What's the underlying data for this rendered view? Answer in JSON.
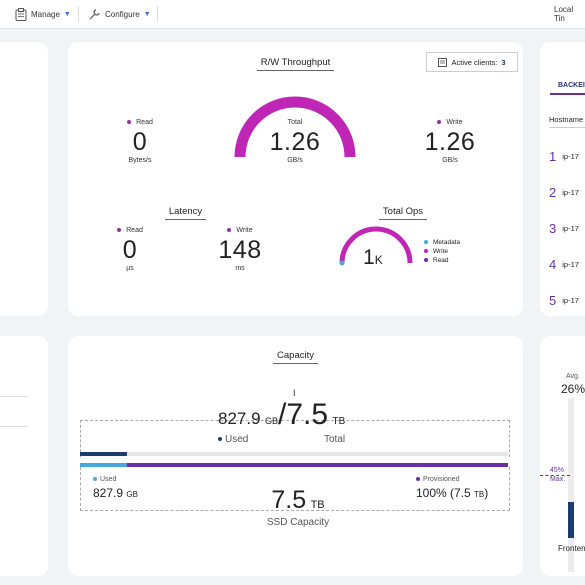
{
  "topbar": {
    "manage_label": "Manage",
    "configure_label": "Configure",
    "local_time_label": "Local Tin"
  },
  "throughput": {
    "title": "R/W Throughput",
    "active_clients_label": "Active clients:",
    "active_clients_value": "3",
    "read_label": "Read",
    "read_value": "0",
    "read_unit": "Bytes/s",
    "total_label": "Total",
    "total_value": "1.26",
    "total_unit": "GB/s",
    "write_label": "Write",
    "write_value": "1.26",
    "write_unit": "GB/s"
  },
  "latency": {
    "title": "Latency",
    "read_label": "Read",
    "read_value": "0",
    "read_unit": "µs",
    "write_label": "Write",
    "write_value": "148",
    "write_unit": "ms"
  },
  "total_ops": {
    "title": "Total Ops",
    "value": "1",
    "suffix": "K",
    "legend": [
      "Metadata",
      "Write",
      "Read"
    ],
    "legend_colors": [
      "#4aa8d8",
      "#c026b6",
      "#6b2fa0"
    ]
  },
  "backend": {
    "tab_label": "BACKEI",
    "column_label": "Hostname",
    "rows": [
      {
        "rank": "1",
        "host": "ip-17"
      },
      {
        "rank": "2",
        "host": "ip-17"
      },
      {
        "rank": "3",
        "host": "ip-17"
      },
      {
        "rank": "4",
        "host": "ip-17"
      },
      {
        "rank": "5",
        "host": "ip-17"
      }
    ]
  },
  "capacity": {
    "title": "Capacity",
    "used_value": "827.9",
    "used_unit": "GB",
    "slash": "/",
    "total_value": "7.5",
    "total_unit": "TB",
    "used_label": "Used",
    "total_label": "Total",
    "bar_used_fraction": 0.11,
    "ssd_used_label": "Used",
    "ssd_used_value": "827.9",
    "ssd_used_unit": "GB",
    "provisioned_label": "Provisioned",
    "provisioned_value": "100% (7.5",
    "provisioned_unit": "TB",
    "provisioned_close": ")",
    "ssd_value": "7.5",
    "ssd_unit": "TB",
    "ssd_label": "SSD Capacity"
  },
  "frontend": {
    "avg_label": "Avg.",
    "avg_value": "26%",
    "max_value": "45%",
    "max_label": "Max.",
    "label": "Fronten"
  },
  "colors": {
    "magenta": "#c026b6",
    "purple": "#6b2fa0",
    "navy": "#1d3c6e",
    "lightblue": "#4aa8d8"
  }
}
